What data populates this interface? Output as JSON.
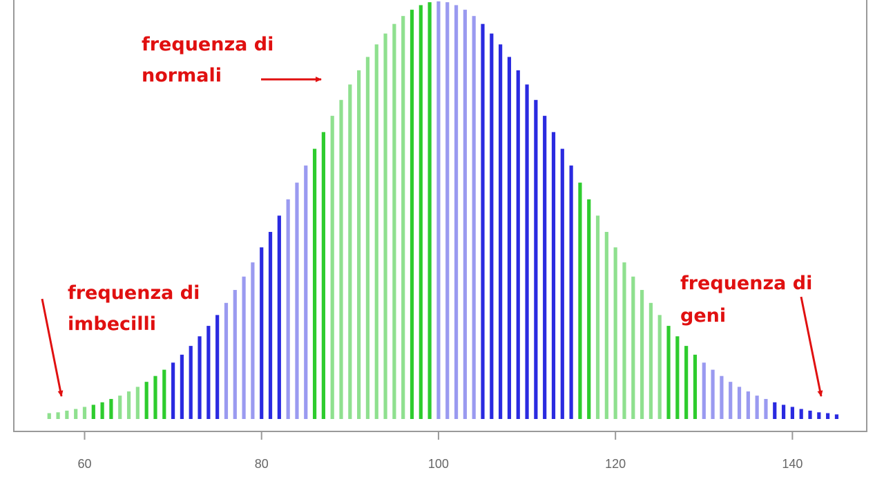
{
  "chart_data": {
    "type": "bar",
    "x": [
      56,
      57,
      58,
      59,
      60,
      61,
      62,
      63,
      64,
      65,
      66,
      67,
      68,
      69,
      70,
      71,
      72,
      73,
      74,
      75,
      76,
      77,
      78,
      79,
      80,
      81,
      82,
      83,
      84,
      85,
      86,
      87,
      88,
      89,
      90,
      91,
      92,
      93,
      94,
      95,
      96,
      97,
      98,
      99,
      100,
      101,
      102,
      103,
      104,
      105,
      106,
      107,
      108,
      109,
      110,
      111,
      112,
      113,
      114,
      115,
      116,
      117,
      118,
      119,
      120,
      121,
      122,
      123,
      124,
      125,
      126,
      127,
      128,
      129,
      130,
      131,
      132,
      133,
      134,
      135,
      136,
      137,
      138,
      139,
      140,
      141,
      142,
      143,
      144,
      145
    ],
    "values": [
      1.4,
      1.6,
      2.0,
      2.4,
      2.9,
      3.4,
      4.0,
      4.8,
      5.6,
      6.6,
      7.7,
      8.9,
      10.3,
      11.8,
      13.5,
      15.4,
      17.5,
      19.8,
      22.3,
      24.9,
      27.8,
      30.9,
      34.1,
      37.5,
      41.1,
      44.8,
      48.7,
      52.6,
      56.6,
      60.7,
      64.7,
      68.7,
      72.6,
      76.4,
      80.1,
      83.5,
      86.7,
      89.7,
      92.3,
      94.6,
      96.5,
      98.0,
      99.1,
      99.8,
      100,
      99.8,
      99.1,
      98.0,
      96.5,
      94.6,
      92.3,
      89.7,
      86.7,
      83.5,
      80.1,
      76.4,
      72.6,
      68.7,
      64.7,
      60.7,
      56.6,
      52.6,
      48.7,
      44.8,
      41.1,
      37.5,
      34.1,
      30.9,
      27.8,
      24.9,
      22.3,
      19.8,
      17.5,
      15.4,
      13.5,
      11.8,
      10.3,
      8.9,
      7.7,
      6.6,
      5.6,
      4.8,
      4.0,
      3.4,
      2.9,
      2.4,
      2.0,
      1.6,
      1.4,
      1.1
    ],
    "colors": [
      "#8fe08f",
      "#8fe08f",
      "#8fe08f",
      "#8fe08f",
      "#8fe08f",
      "#2ecc2e",
      "#2ecc2e",
      "#2ecc2e",
      "#8fe08f",
      "#8fe08f",
      "#8fe08f",
      "#2ecc2e",
      "#2ecc2e",
      "#2ecc2e",
      "#2a2ae0",
      "#2a2ae0",
      "#2a2ae0",
      "#2a2ae0",
      "#2a2ae0",
      "#2a2ae0",
      "#9a9af0",
      "#9a9af0",
      "#9a9af0",
      "#9a9af0",
      "#2a2ae0",
      "#2a2ae0",
      "#2a2ae0",
      "#9a9af0",
      "#9a9af0",
      "#9a9af0",
      "#2ecc2e",
      "#2ecc2e",
      "#8fe08f",
      "#8fe08f",
      "#8fe08f",
      "#8fe08f",
      "#8fe08f",
      "#8fe08f",
      "#8fe08f",
      "#8fe08f",
      "#8fe08f",
      "#2ecc2e",
      "#2ecc2e",
      "#2ecc2e",
      "#9a9af0",
      "#9a9af0",
      "#9a9af0",
      "#9a9af0",
      "#9a9af0",
      "#2a2ae0",
      "#2a2ae0",
      "#2a2ae0",
      "#2a2ae0",
      "#2a2ae0",
      "#2a2ae0",
      "#2a2ae0",
      "#2a2ae0",
      "#2a2ae0",
      "#2a2ae0",
      "#2a2ae0",
      "#2ecc2e",
      "#2ecc2e",
      "#8fe08f",
      "#8fe08f",
      "#8fe08f",
      "#8fe08f",
      "#8fe08f",
      "#8fe08f",
      "#8fe08f",
      "#8fe08f",
      "#2ecc2e",
      "#2ecc2e",
      "#2ecc2e",
      "#2ecc2e",
      "#9a9af0",
      "#9a9af0",
      "#9a9af0",
      "#9a9af0",
      "#9a9af0",
      "#9a9af0",
      "#9a9af0",
      "#9a9af0",
      "#2a2ae0",
      "#2a2ae0",
      "#2a2ae0",
      "#2a2ae0",
      "#2a2ae0",
      "#2a2ae0",
      "#2a2ae0",
      "#2a2ae0"
    ],
    "xlim": [
      52,
      148.4
    ],
    "xticks": [
      60,
      80,
      100,
      120,
      140
    ],
    "annotations": [
      {
        "lines": [
          "frequenza di",
          "normali"
        ]
      },
      {
        "lines": [
          "frequenza di",
          "imbecilli"
        ]
      },
      {
        "lines": [
          "frequenza di",
          "geni"
        ]
      }
    ]
  }
}
